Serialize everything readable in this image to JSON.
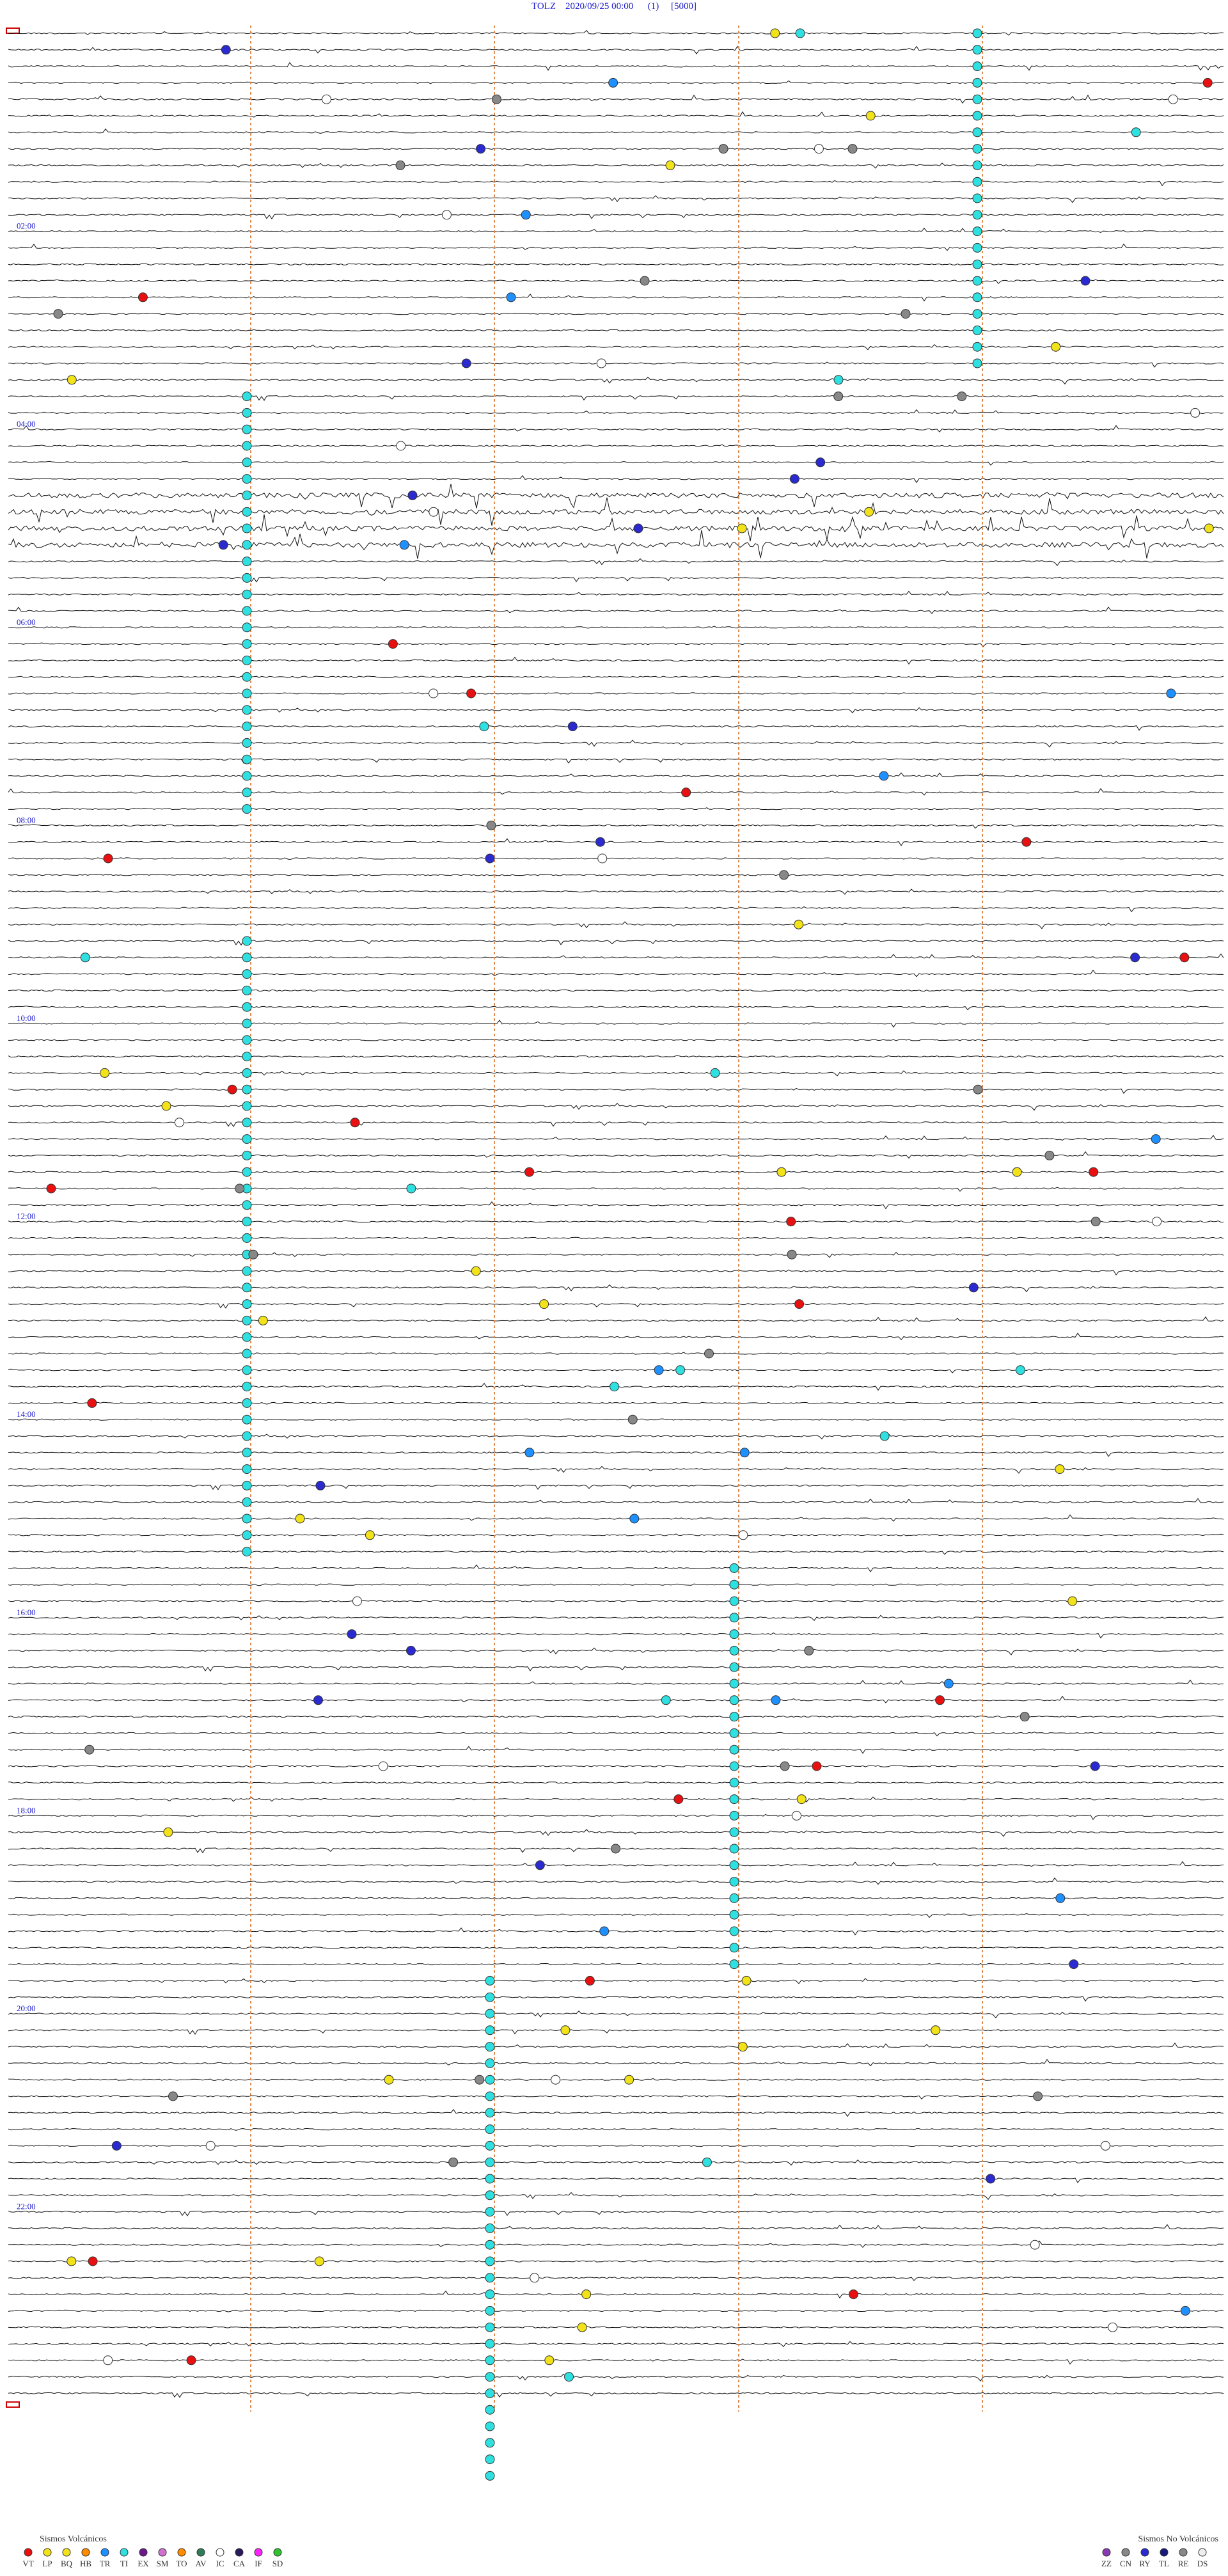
{
  "header": {
    "title": "TOLZ    2020/09/25 00:00      (1)     [5000]"
  },
  "hour_labels": [
    "02:00",
    "04:00",
    "06:00",
    "08:00",
    "10:00",
    "12:00",
    "14:00",
    "16:00",
    "18:00",
    "20:00",
    "22:00"
  ],
  "legend": {
    "volcanic": {
      "title": "Sismos Volcánicos",
      "items": [
        "VT",
        "LP",
        "BQ",
        "HB",
        "TR",
        "TI",
        "EX",
        "SM",
        "TO",
        "AV",
        "IC",
        "CA",
        "IF",
        "SD"
      ]
    },
    "non_volcanic": {
      "title": "Sismos No Volcánicos",
      "items": [
        "ZZ",
        "CN",
        "RY",
        "TL",
        "RE",
        "DS"
      ]
    }
  }
}
